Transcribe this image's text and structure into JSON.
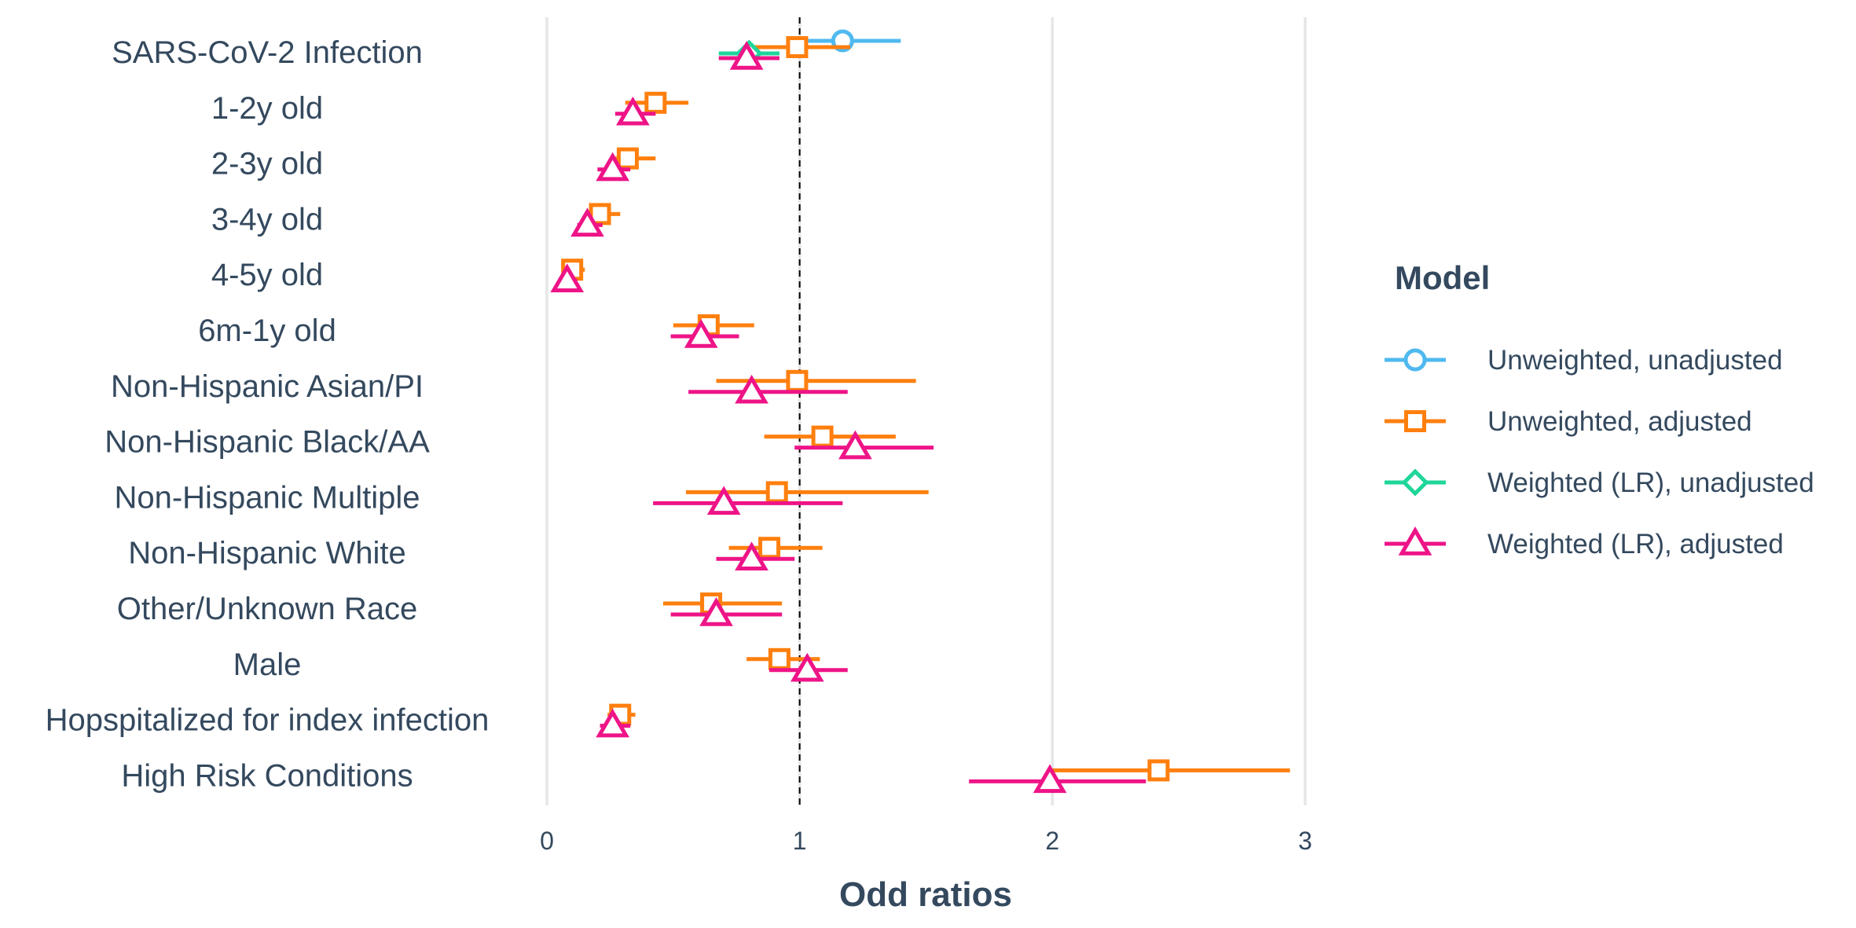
{
  "chart_data": {
    "type": "forest",
    "xlabel": "Odd ratios",
    "xlim": [
      0,
      3
    ],
    "xticks": [
      "0",
      "1",
      "2",
      "3"
    ],
    "reference_line": 1,
    "grid": true,
    "legend": {
      "title": "Model",
      "placement": "right"
    },
    "categories": [
      "SARS-CoV-2 Infection",
      "1-2y old",
      "2-3y old",
      "3-4y old",
      "4-5y old",
      "6m-1y old",
      "Non-Hispanic Asian/PI",
      "Non-Hispanic Black/AA",
      "Non-Hispanic Multiple",
      "Non-Hispanic White",
      "Other/Unknown Race",
      "Male",
      "Hopspitalized for index infection",
      "High Risk Conditions"
    ],
    "series": [
      {
        "name": "Unweighted, unadjusted",
        "color": "#4fb9f0",
        "marker": "circle",
        "points": [
          {
            "category": "SARS-CoV-2 Infection",
            "estimate": 1.17,
            "lower": 0.97,
            "upper": 1.4
          }
        ]
      },
      {
        "name": "Unweighted, adjusted",
        "color": "#ff7f0e",
        "marker": "square",
        "points": [
          {
            "category": "SARS-CoV-2 Infection",
            "estimate": 0.99,
            "lower": 0.8,
            "upper": 1.2
          },
          {
            "category": "1-2y old",
            "estimate": 0.43,
            "lower": 0.31,
            "upper": 0.56
          },
          {
            "category": "2-3y old",
            "estimate": 0.32,
            "lower": 0.25,
            "upper": 0.43
          },
          {
            "category": "3-4y old",
            "estimate": 0.21,
            "lower": 0.16,
            "upper": 0.29
          },
          {
            "category": "4-5y old",
            "estimate": 0.1,
            "lower": 0.07,
            "upper": 0.15
          },
          {
            "category": "6m-1y old",
            "estimate": 0.64,
            "lower": 0.5,
            "upper": 0.82
          },
          {
            "category": "Non-Hispanic Asian/PI",
            "estimate": 0.99,
            "lower": 0.67,
            "upper": 1.46
          },
          {
            "category": "Non-Hispanic Black/AA",
            "estimate": 1.09,
            "lower": 0.86,
            "upper": 1.38
          },
          {
            "category": "Non-Hispanic Multiple",
            "estimate": 0.91,
            "lower": 0.55,
            "upper": 1.51
          },
          {
            "category": "Non-Hispanic White",
            "estimate": 0.88,
            "lower": 0.72,
            "upper": 1.09
          },
          {
            "category": "Other/Unknown Race",
            "estimate": 0.65,
            "lower": 0.46,
            "upper": 0.93
          },
          {
            "category": "Male",
            "estimate": 0.92,
            "lower": 0.79,
            "upper": 1.08
          },
          {
            "category": "Hopspitalized for index infection",
            "estimate": 0.29,
            "lower": 0.24,
            "upper": 0.35
          },
          {
            "category": "High Risk Conditions",
            "estimate": 2.42,
            "lower": 2.0,
            "upper": 2.94
          }
        ]
      },
      {
        "name": "Weighted (LR), unadjusted",
        "color": "#1fd69a",
        "marker": "diamond",
        "points": [
          {
            "category": "SARS-CoV-2 Infection",
            "estimate": 0.8,
            "lower": 0.68,
            "upper": 0.92
          }
        ]
      },
      {
        "name": "Weighted (LR), adjusted",
        "color": "#ee1487",
        "marker": "triangle",
        "points": [
          {
            "category": "SARS-CoV-2 Infection",
            "estimate": 0.79,
            "lower": 0.68,
            "upper": 0.92
          },
          {
            "category": "1-2y old",
            "estimate": 0.34,
            "lower": 0.27,
            "upper": 0.43
          },
          {
            "category": "2-3y old",
            "estimate": 0.26,
            "lower": 0.2,
            "upper": 0.33
          },
          {
            "category": "3-4y old",
            "estimate": 0.16,
            "lower": 0.12,
            "upper": 0.22
          },
          {
            "category": "4-5y old",
            "estimate": 0.08,
            "lower": 0.06,
            "upper": 0.12
          },
          {
            "category": "6m-1y old",
            "estimate": 0.61,
            "lower": 0.49,
            "upper": 0.76
          },
          {
            "category": "Non-Hispanic Asian/PI",
            "estimate": 0.81,
            "lower": 0.56,
            "upper": 1.19
          },
          {
            "category": "Non-Hispanic Black/AA",
            "estimate": 1.22,
            "lower": 0.98,
            "upper": 1.53
          },
          {
            "category": "Non-Hispanic Multiple",
            "estimate": 0.7,
            "lower": 0.42,
            "upper": 1.17
          },
          {
            "category": "Non-Hispanic White",
            "estimate": 0.81,
            "lower": 0.67,
            "upper": 0.98
          },
          {
            "category": "Other/Unknown Race",
            "estimate": 0.67,
            "lower": 0.49,
            "upper": 0.93
          },
          {
            "category": "Male",
            "estimate": 1.03,
            "lower": 0.88,
            "upper": 1.19
          },
          {
            "category": "Hopspitalized for index infection",
            "estimate": 0.26,
            "lower": 0.21,
            "upper": 0.33
          },
          {
            "category": "High Risk Conditions",
            "estimate": 1.99,
            "lower": 1.67,
            "upper": 2.37
          }
        ]
      }
    ]
  }
}
